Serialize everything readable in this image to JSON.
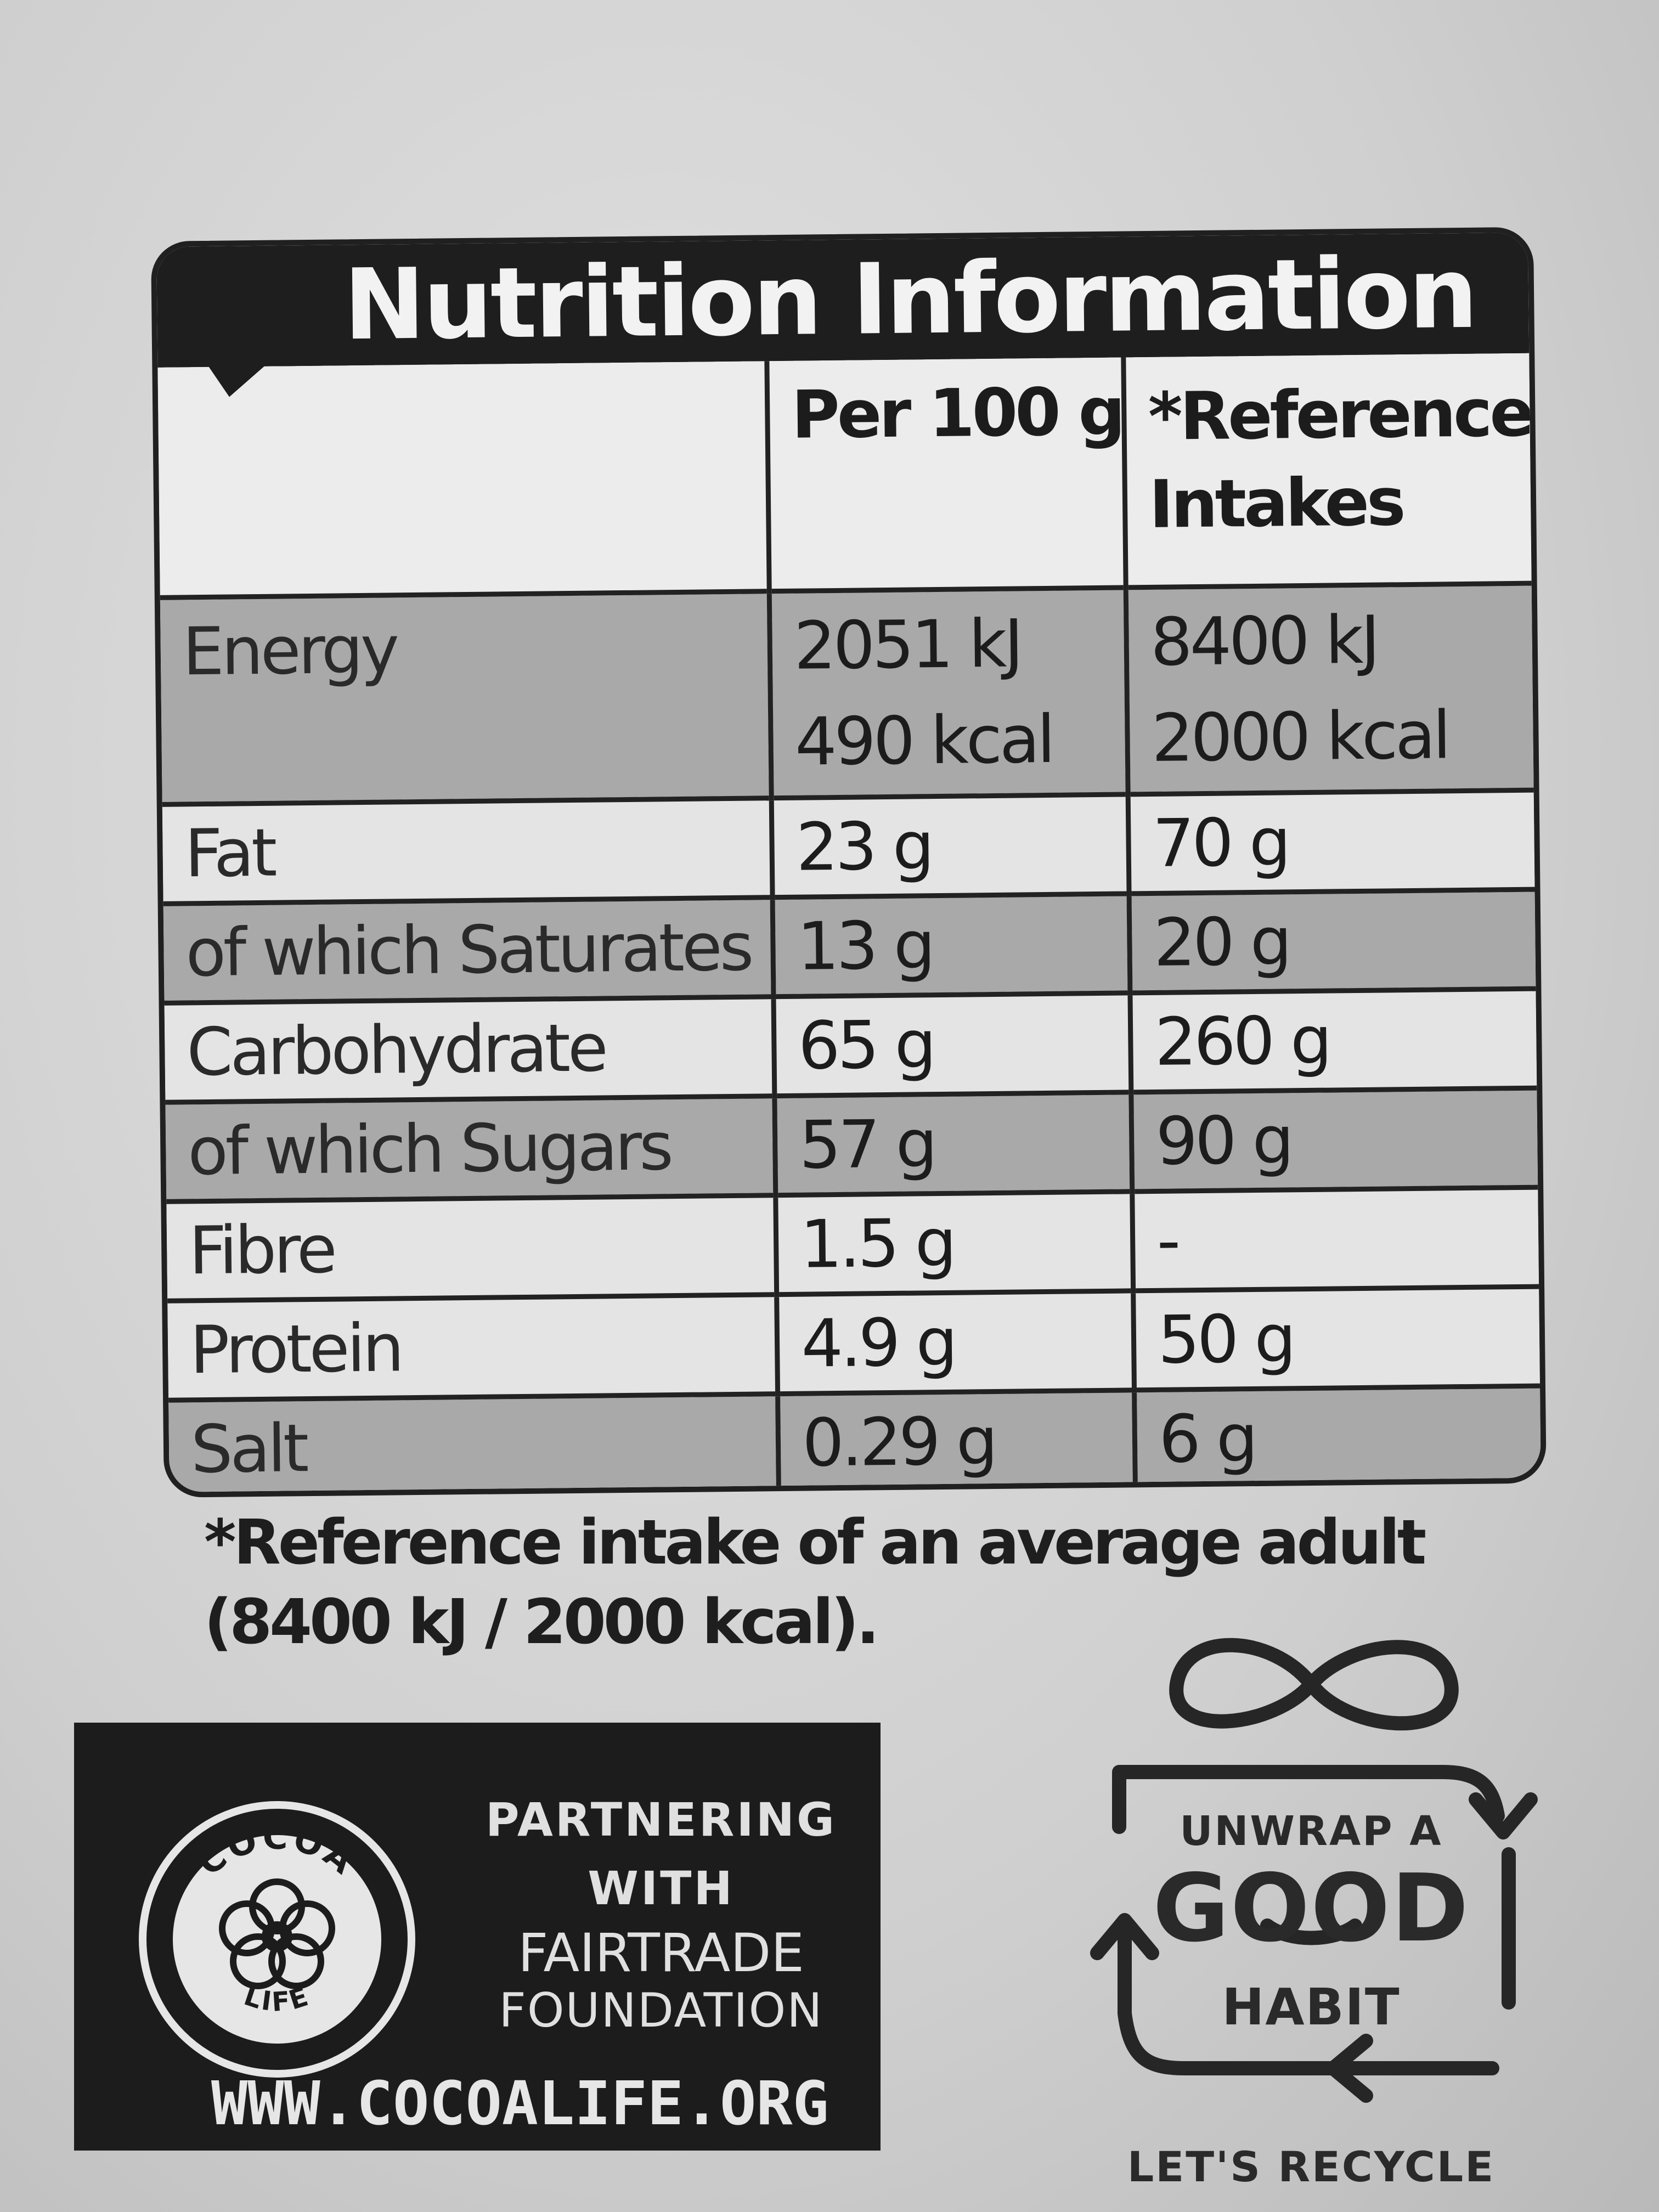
{
  "nutrition": {
    "title": "Nutrition Information",
    "headers": {
      "per100": "Per 100 g",
      "reference_line1": "*Reference",
      "reference_line2": "Intakes"
    },
    "energy": {
      "label": "Energy",
      "per100_kj": "2051 kJ",
      "per100_kcal": "490 kcal",
      "ri_kj": "8400 kJ",
      "ri_kcal": "2000 kcal"
    },
    "rows": [
      {
        "label": "Fat",
        "per100": "23 g",
        "ri": "70 g"
      },
      {
        "label": "of which Saturates",
        "per100": "13 g",
        "ri": "20 g"
      },
      {
        "label": "Carbohydrate",
        "per100": "65 g",
        "ri": "260 g"
      },
      {
        "label": "of which Sugars",
        "per100": "57 g",
        "ri": "90 g"
      },
      {
        "label": "Fibre",
        "per100": "1.5 g",
        "ri": "-"
      },
      {
        "label": "Protein",
        "per100": "4.9 g",
        "ri": "50 g"
      },
      {
        "label": "Salt",
        "per100": "0.29 g",
        "ri": "6 g"
      }
    ],
    "footnote_line1": "*Reference intake of an average adult",
    "footnote_line2": "(8400 kJ / 2000 kcal)."
  },
  "cocoa_life": {
    "seal_top": "COCOA",
    "seal_bottom": "LIFE",
    "partnering": "PARTNERING",
    "with": "WITH",
    "fairtrade": "FAIRTRADE",
    "foundation": "FOUNDATION",
    "url": "WWW.COCOALIFE.ORG"
  },
  "recycle": {
    "unwrap": "UNWRAP A",
    "good": "GOOD",
    "habit": "HABIT",
    "lets_recycle": "LET'S RECYCLE"
  }
}
